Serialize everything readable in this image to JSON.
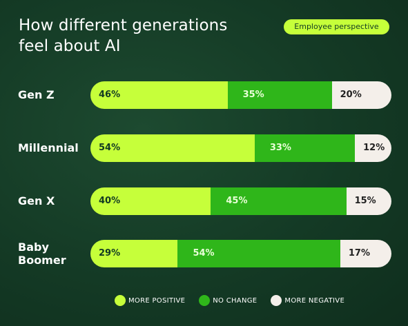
{
  "header": {
    "title_line1": "How different generations",
    "title_line2": "feel about AI",
    "badge": "Employee perspective"
  },
  "colors": {
    "more_positive": "#c6ff3a",
    "no_change": "#2fb61a",
    "more_negative": "#f4efea",
    "background": "#143a25"
  },
  "chart_data": {
    "type": "bar",
    "orientation": "horizontal",
    "stacked": true,
    "categories": [
      "Gen Z",
      "Millennial",
      "Gen X",
      "Baby Boomer"
    ],
    "series": [
      {
        "name": "MORE POSITIVE",
        "values": [
          46,
          54,
          40,
          29
        ]
      },
      {
        "name": "NO CHANGE",
        "values": [
          35,
          33,
          45,
          54
        ]
      },
      {
        "name": "MORE NEGATIVE",
        "values": [
          20,
          12,
          15,
          17
        ]
      }
    ],
    "value_suffix": "%",
    "legend_position": "bottom"
  },
  "legend": {
    "items": [
      "MORE POSITIVE",
      "NO CHANGE",
      "MORE NEGATIVE"
    ]
  }
}
